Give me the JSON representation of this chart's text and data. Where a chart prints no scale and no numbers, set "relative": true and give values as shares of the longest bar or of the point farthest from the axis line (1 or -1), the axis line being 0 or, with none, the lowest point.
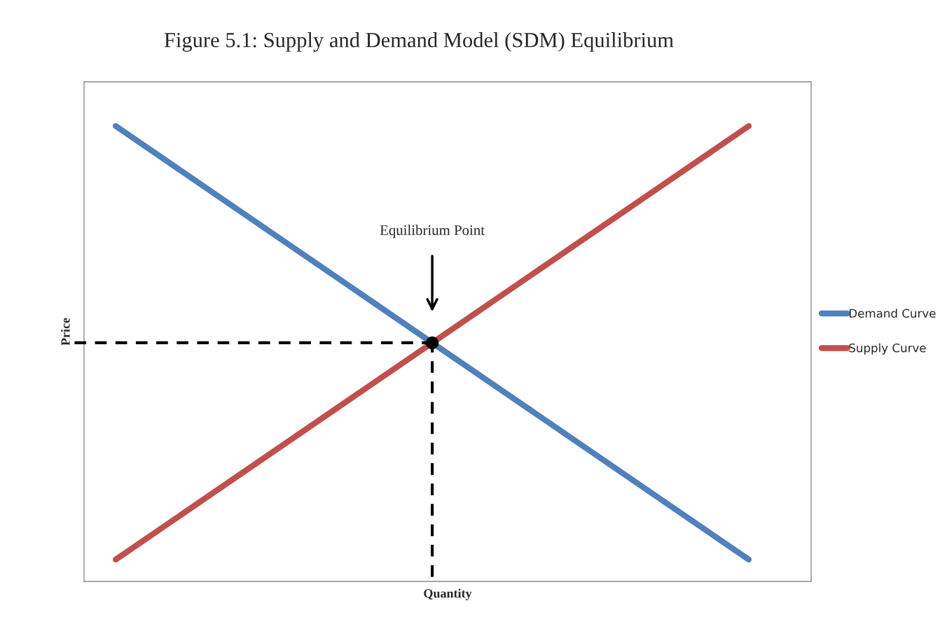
{
  "chart_data": {
    "type": "line",
    "title": "Figure 5.1: Supply and Demand Model (SDM) Equilibrium",
    "xlabel": "Quantity",
    "ylabel": "Price",
    "relative": true,
    "categories": [
      null,
      null,
      null
    ],
    "legend": "right",
    "series": [
      {
        "name": "Demand Curve",
        "color": "#4f81bd",
        "values": [
          1,
          0.524,
          0.048
        ]
      },
      {
        "name": "Supply Curve",
        "color": "#c0504d",
        "values": [
          0.048,
          0.524,
          1
        ]
      }
    ],
    "ref_lines": [
      {
        "axis": "y",
        "value": 0.524,
        "color": "#000000",
        "line_style": "dashed"
      }
    ],
    "annotations": [
      "Equilibrium Point"
    ]
  }
}
